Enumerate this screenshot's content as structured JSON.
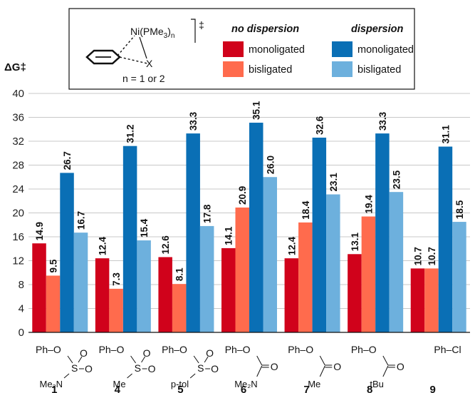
{
  "chart_data": {
    "type": "bar",
    "ylabel": "ΔG‡",
    "ylim": [
      0,
      40
    ],
    "yticks": [
      0,
      4,
      8,
      12,
      16,
      20,
      24,
      28,
      32,
      36,
      40
    ],
    "grid": true,
    "categories": [
      "1",
      "4",
      "5",
      "6",
      "7",
      "8",
      "9"
    ],
    "series": [
      {
        "name": "monoligated",
        "group": "no dispersion",
        "color": "#d0021b",
        "values": [
          14.9,
          12.4,
          12.6,
          14.1,
          12.4,
          13.1,
          10.7
        ]
      },
      {
        "name": "bisligated",
        "group": "no dispersion",
        "color": "#ff6b4d",
        "values": [
          9.5,
          7.3,
          8.1,
          20.9,
          18.4,
          19.4,
          10.7
        ]
      },
      {
        "name": "monoligated",
        "group": "dispersion",
        "color": "#0a6fb5",
        "values": [
          26.7,
          31.2,
          33.3,
          35.1,
          32.6,
          33.3,
          31.1
        ]
      },
      {
        "name": "bisligated",
        "group": "dispersion",
        "color": "#6db0dd",
        "values": [
          16.7,
          15.4,
          17.8,
          26.0,
          23.1,
          23.5,
          18.5
        ]
      }
    ],
    "legend": {
      "placement": "top",
      "headers": [
        "no dispersion",
        "dispersion"
      ],
      "items": [
        "monoligated",
        "bisligated",
        "monoligated",
        "bisligated"
      ],
      "complex_text": {
        "metal": "Ni(PMe",
        "sub3": "3",
        "close": ")",
        "subn": "n",
        "dagger": "‡",
        "x": "X",
        "n_note": "n = 1 or 2"
      }
    },
    "substrates": [
      {
        "lines": [
          "Ph–O",
          "S",
          "O",
          "O",
          "Me₂N"
        ]
      },
      {
        "lines": [
          "Ph–O",
          "S",
          "O",
          "O",
          "Me"
        ]
      },
      {
        "lines": [
          "Ph–O",
          "S",
          "O",
          "O",
          "p-tol"
        ]
      },
      {
        "lines": [
          "Ph–O",
          "O",
          "Me₂N"
        ]
      },
      {
        "lines": [
          "Ph–O",
          "O",
          "Me"
        ]
      },
      {
        "lines": [
          "Ph–O",
          "O",
          "tBu"
        ]
      },
      {
        "lines": [
          "Ph–Cl"
        ]
      }
    ]
  }
}
